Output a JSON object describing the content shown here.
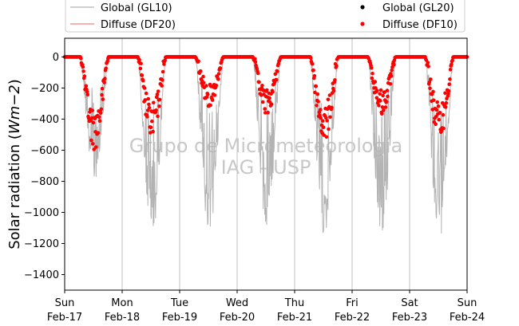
{
  "chart_data": {
    "type": "scatter",
    "ylabel": "Solar radiation ($Wm{-}2$)",
    "ylabel_parts": {
      "prefix": "Solar radiation (",
      "unit_italic": "Wm−2",
      "suffix": ")"
    },
    "xlim": [
      "2019-02-17T00:00",
      "2019-02-24T00:00"
    ],
    "ylim": [
      -1500,
      120
    ],
    "yticks": [
      0,
      -200,
      -400,
      -600,
      -800,
      -1000,
      -1200,
      -1400
    ],
    "xticks": [
      {
        "day": "Sun",
        "date": "Feb-17",
        "offset_days": 0
      },
      {
        "day": "Mon",
        "date": "Feb-18",
        "offset_days": 1
      },
      {
        "day": "Tue",
        "date": "Feb-19",
        "offset_days": 2
      },
      {
        "day": "Wed",
        "date": "Feb-20",
        "offset_days": 3
      },
      {
        "day": "Thu",
        "date": "Feb-21",
        "offset_days": 4
      },
      {
        "day": "Fri",
        "date": "Feb-22",
        "offset_days": 5
      },
      {
        "day": "Sat",
        "date": "Feb-23",
        "offset_days": 6
      },
      {
        "day": "Sun",
        "date": "Feb-24",
        "offset_days": 7
      }
    ],
    "grid": "vertical",
    "legend_position": "top",
    "series": [
      {
        "name": "Global (GL10)",
        "kind": "line",
        "color": "#b3b3b3"
      },
      {
        "name": "Diffuse (DF20)",
        "kind": "line",
        "color": "#f08080"
      },
      {
        "name": "Global (GL20)",
        "kind": "marker",
        "color": "#000000"
      },
      {
        "name": "Diffuse (DF10)",
        "kind": "marker",
        "color": "#ff0000"
      }
    ],
    "daily_profiles": [
      {
        "date": "Feb-17",
        "sunrise_h": 6.6,
        "sunset_h": 18.2,
        "global_peak": -800,
        "diffuse_peak": -600
      },
      {
        "date": "Feb-18",
        "sunrise_h": 6.6,
        "sunset_h": 18.2,
        "global_peak": -1170,
        "diffuse_peak": -540
      },
      {
        "date": "Feb-19",
        "sunrise_h": 6.6,
        "sunset_h": 18.2,
        "global_peak": -1160,
        "diffuse_peak": -320
      },
      {
        "date": "Feb-20",
        "sunrise_h": 6.6,
        "sunset_h": 18.2,
        "global_peak": -1110,
        "diffuse_peak": -380
      },
      {
        "date": "Feb-21",
        "sunrise_h": 6.6,
        "sunset_h": 18.2,
        "global_peak": -1160,
        "diffuse_peak": -560
      },
      {
        "date": "Feb-22",
        "sunrise_h": 6.6,
        "sunset_h": 18.2,
        "global_peak": -1140,
        "diffuse_peak": -380
      },
      {
        "date": "Feb-23",
        "sunrise_h": 6.6,
        "sunset_h": 18.2,
        "global_peak": -1190,
        "diffuse_peak": -540
      }
    ]
  },
  "watermark": {
    "line1": "Grupo de Micrometeorologia",
    "line2": "IAG - USP"
  },
  "legend_color_global_marker": "#000000",
  "legend_color_diffuse_marker": "#ff0000"
}
